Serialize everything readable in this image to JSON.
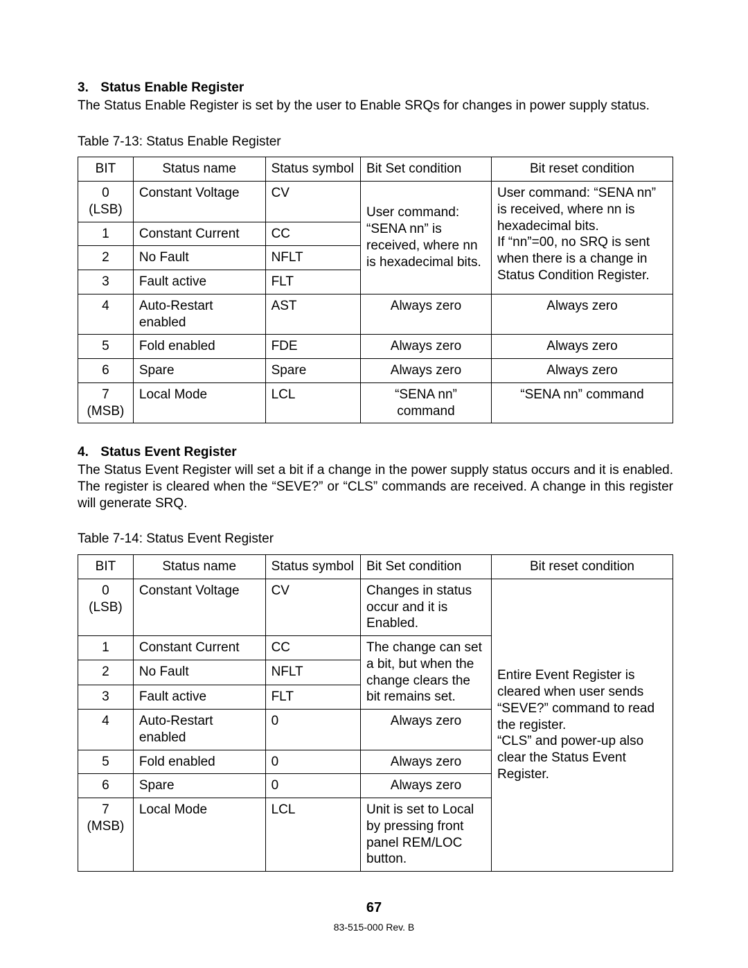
{
  "page": {
    "number": "67",
    "revision": "83-515-000 Rev. B"
  },
  "colors": {
    "text": "#000000",
    "background": "#ffffff",
    "border": "#000000"
  },
  "typography": {
    "body_fontsize_pt": 14,
    "heading_weight": "bold",
    "footer_fontsize_pt": 10
  },
  "section3": {
    "number": "3.",
    "title": "Status Enable Register",
    "paragraph": "The Status Enable Register is set by the user to Enable SRQs for changes in power supply status.",
    "table_caption": "Table 7-13: Status Enable Register"
  },
  "section4": {
    "number": "4.",
    "title": "Status Event Register",
    "paragraph": "The Status Event Register will set a bit if a change in the power supply status occurs and it is enabled. The register is cleared when the “SEVE?” or “CLS” commands are received. A change in this register will generate SRQ.",
    "table_caption": "Table 7-14: Status Event Register"
  },
  "table13": {
    "type": "table",
    "columns": [
      "BIT",
      "Status name",
      "Status symbol",
      "Bit Set condition",
      "Bit reset condition"
    ],
    "col_align": [
      "center",
      "left",
      "left",
      "left",
      "left"
    ],
    "merged_set_0_3": "User command: “SENA nn” is received, where nn is hexadecimal bits.",
    "merged_reset_0_3": "User command: “SENA nn” is received, where nn is hexadecimal bits.\nIf “nn”=00, no SRQ is sent when there is a change in Status Condition Register.",
    "rows": [
      {
        "bit": "0 (LSB)",
        "name": "Constant Voltage",
        "sym": "CV"
      },
      {
        "bit": "1",
        "name": "Constant Current",
        "sym": "CC"
      },
      {
        "bit": "2",
        "name": "No Fault",
        "sym": "NFLT"
      },
      {
        "bit": "3",
        "name": "Fault active",
        "sym": "FLT"
      },
      {
        "bit": "4",
        "name": "Auto-Restart enabled",
        "sym": "AST",
        "set": "Always zero",
        "reset": "Always zero"
      },
      {
        "bit": "5",
        "name": "Fold enabled",
        "sym": "FDE",
        "set": "Always zero",
        "reset": "Always zero"
      },
      {
        "bit": "6",
        "name": "Spare",
        "sym": "Spare",
        "set": "Always zero",
        "reset": "Always zero"
      },
      {
        "bit": "7 (MSB)",
        "name": "Local Mode",
        "sym": "LCL",
        "set": "“SENA nn” command",
        "reset": "“SENA nn” command"
      }
    ]
  },
  "table14": {
    "type": "table",
    "columns": [
      "BIT",
      "Status name",
      "Status symbol",
      "Bit Set condition",
      "Bit reset condition"
    ],
    "col_align": [
      "center",
      "left",
      "left",
      "left",
      "left"
    ],
    "merged_set_0_3": "Changes in status occur and it is Enabled.\nThe change can set a bit, but when the change clears the bit remains set.",
    "set_0": "Changes in status occur and it is Enabled.",
    "set_1_3": "The change can set a bit, but when the change clears the bit remains set.",
    "merged_reset_all": "Entire Event Register is cleared when user sends “SEVE?” command to read the register.\n“CLS” and power-up also clear the Status Event Register.",
    "rows": [
      {
        "bit": "0 (LSB)",
        "name": "Constant Voltage",
        "sym": "CV"
      },
      {
        "bit": "1",
        "name": "Constant Current",
        "sym": "CC"
      },
      {
        "bit": "2",
        "name": "No Fault",
        "sym": "NFLT"
      },
      {
        "bit": "3",
        "name": "Fault active",
        "sym": "FLT"
      },
      {
        "bit": "4",
        "name": "Auto-Restart enabled",
        "sym": "0",
        "set": "Always zero"
      },
      {
        "bit": "5",
        "name": "Fold enabled",
        "sym": "0",
        "set": "Always zero"
      },
      {
        "bit": "6",
        "name": "Spare",
        "sym": "0",
        "set": "Always zero"
      },
      {
        "bit": "7 (MSB)",
        "name": "Local Mode",
        "sym": "LCL",
        "set": "Unit is set to Local by pressing front panel REM/LOC button."
      }
    ]
  }
}
